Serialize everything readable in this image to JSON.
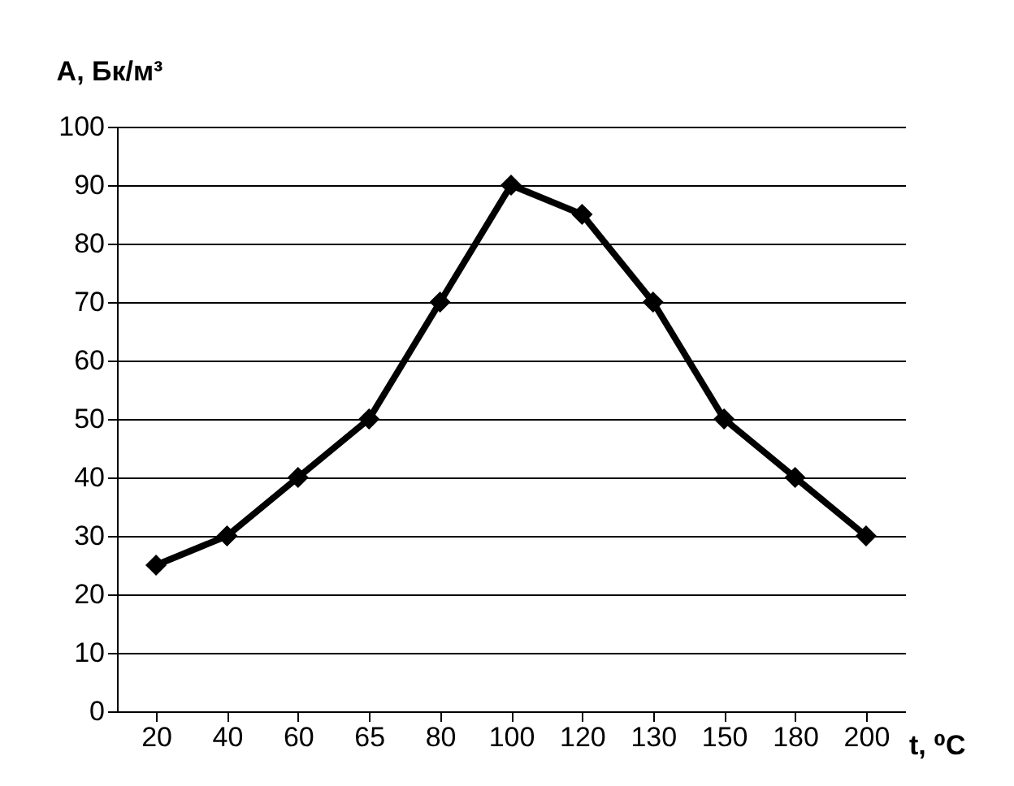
{
  "chart_data": {
    "type": "line",
    "xlabel": "t, ⁰C",
    "ylabel": "A, Бк/м³",
    "categories": [
      "20",
      "40",
      "60",
      "65",
      "80",
      "100",
      "120",
      "130",
      "150",
      "180",
      "200"
    ],
    "series": [
      {
        "color": "#000000",
        "values": [
          25,
          30,
          40,
          50,
          70,
          90,
          85,
          70,
          50,
          40,
          30
        ]
      }
    ],
    "ylim": [
      0,
      100
    ],
    "yticks": [
      0,
      10,
      20,
      30,
      40,
      50,
      60,
      70,
      80,
      90,
      100
    ],
    "grid": "y",
    "marker": "diamond",
    "line_style": "solid",
    "legend": false
  }
}
